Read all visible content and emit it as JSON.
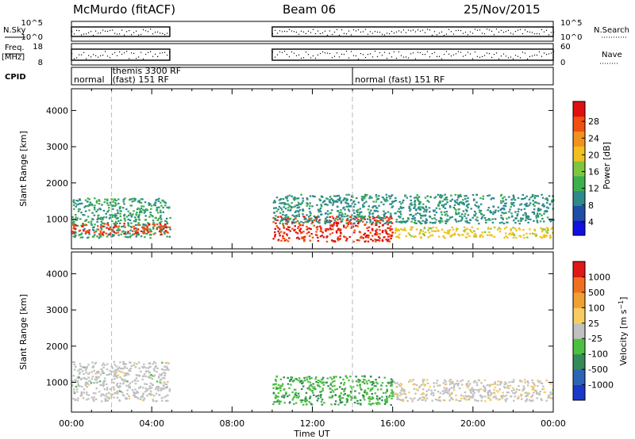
{
  "header": {
    "station": "McMurdo (fitACF)",
    "beam": "Beam 06",
    "date": "25/Nov/2015"
  },
  "summary_panels": {
    "nsky": {
      "label": "N.Sky",
      "ticks": [
        "10^5",
        "10^0"
      ]
    },
    "nsearch": {
      "label": "N.Search",
      "ticks": [
        "10^5",
        "10^0"
      ]
    },
    "freq": {
      "label_line1": "Freq.",
      "label_line2": "[MHz]",
      "ticks": [
        "18",
        "8"
      ]
    },
    "nave": {
      "label": "Nave",
      "ticks": [
        "60",
        "0"
      ]
    },
    "cpid": {
      "label": "CPID",
      "segments": [
        {
          "text": "normal",
          "start_hour": 0,
          "end_hour": 2
        },
        {
          "text": "themis 3300 RF",
          "start_hour": 2,
          "end_hour": 5
        },
        {
          "text": "(fast) 151 RF",
          "start_hour": 2,
          "end_hour": 5
        },
        {
          "text": "normal (fast) 151 RF",
          "start_hour": 14,
          "end_hour": 24
        }
      ]
    }
  },
  "x_axis": {
    "label": "Time UT",
    "tick_labels": [
      "00:00",
      "04:00",
      "08:00",
      "12:00",
      "16:00",
      "20:00",
      "00:00"
    ],
    "range_hours": [
      0,
      24
    ]
  },
  "chart_data": [
    {
      "type": "heatmap",
      "panel": "power",
      "ylabel": "Slant Range [km]",
      "yticks": [
        "1000",
        "2000",
        "3000",
        "4000"
      ],
      "ylim": [
        180,
        4600
      ],
      "xlim_hours": [
        0,
        24
      ],
      "colorbar": {
        "label": "Power [dB]",
        "ticks": [
          "4",
          "8",
          "12",
          "16",
          "20",
          "24",
          "28"
        ],
        "range": [
          0,
          30
        ]
      },
      "data_intervals_hours": [
        [
          0,
          4.9
        ],
        [
          10,
          24
        ]
      ],
      "bands": [
        {
          "x": [
            0,
            4.9
          ],
          "range_km": [
            500,
            1600
          ],
          "value": 10
        },
        {
          "x": [
            0,
            4.9
          ],
          "range_km": [
            600,
            900
          ],
          "value": 26
        },
        {
          "x": [
            10,
            16
          ],
          "range_km": [
            400,
            1100
          ],
          "value": 27
        },
        {
          "x": [
            10,
            24
          ],
          "range_km": [
            900,
            1700
          ],
          "value": 9
        },
        {
          "x": [
            16,
            24
          ],
          "range_km": [
            500,
            800
          ],
          "value": 18
        }
      ]
    },
    {
      "type": "heatmap",
      "panel": "velocity",
      "ylabel": "Slant Range [km]",
      "yticks": [
        "1000",
        "2000",
        "3000",
        "4000"
      ],
      "ylim": [
        180,
        4600
      ],
      "xlim_hours": [
        0,
        24
      ],
      "colorbar": {
        "label": "Velocity [m s-1]",
        "ticks": [
          "1000",
          "500",
          "100",
          "25",
          "-25",
          "-100",
          "-500",
          "-1000"
        ],
        "range": [
          -1000,
          1000
        ]
      },
      "data_intervals_hours": [
        [
          0,
          4.9
        ],
        [
          10,
          24
        ]
      ],
      "bands": [
        {
          "x": [
            0,
            4.9
          ],
          "range_km": [
            500,
            1600
          ],
          "value": 0
        },
        {
          "x": [
            10,
            16
          ],
          "range_km": [
            400,
            1200
          ],
          "value": -300
        },
        {
          "x": [
            16,
            24
          ],
          "range_km": [
            500,
            1100
          ],
          "value": 50
        }
      ]
    }
  ],
  "colors": {
    "power_scale": [
      "#1010e0",
      "#1e4ea6",
      "#2e8a8a",
      "#3cb04c",
      "#7fc640",
      "#f0c020",
      "#f29020",
      "#f05010",
      "#e01010"
    ],
    "velocity_scale": [
      "#1c38c8",
      "#2e64b4",
      "#348a58",
      "#4cc040",
      "#c0c0c0",
      "#f8cc60",
      "#f0a030",
      "#f07020",
      "#e01818"
    ]
  }
}
